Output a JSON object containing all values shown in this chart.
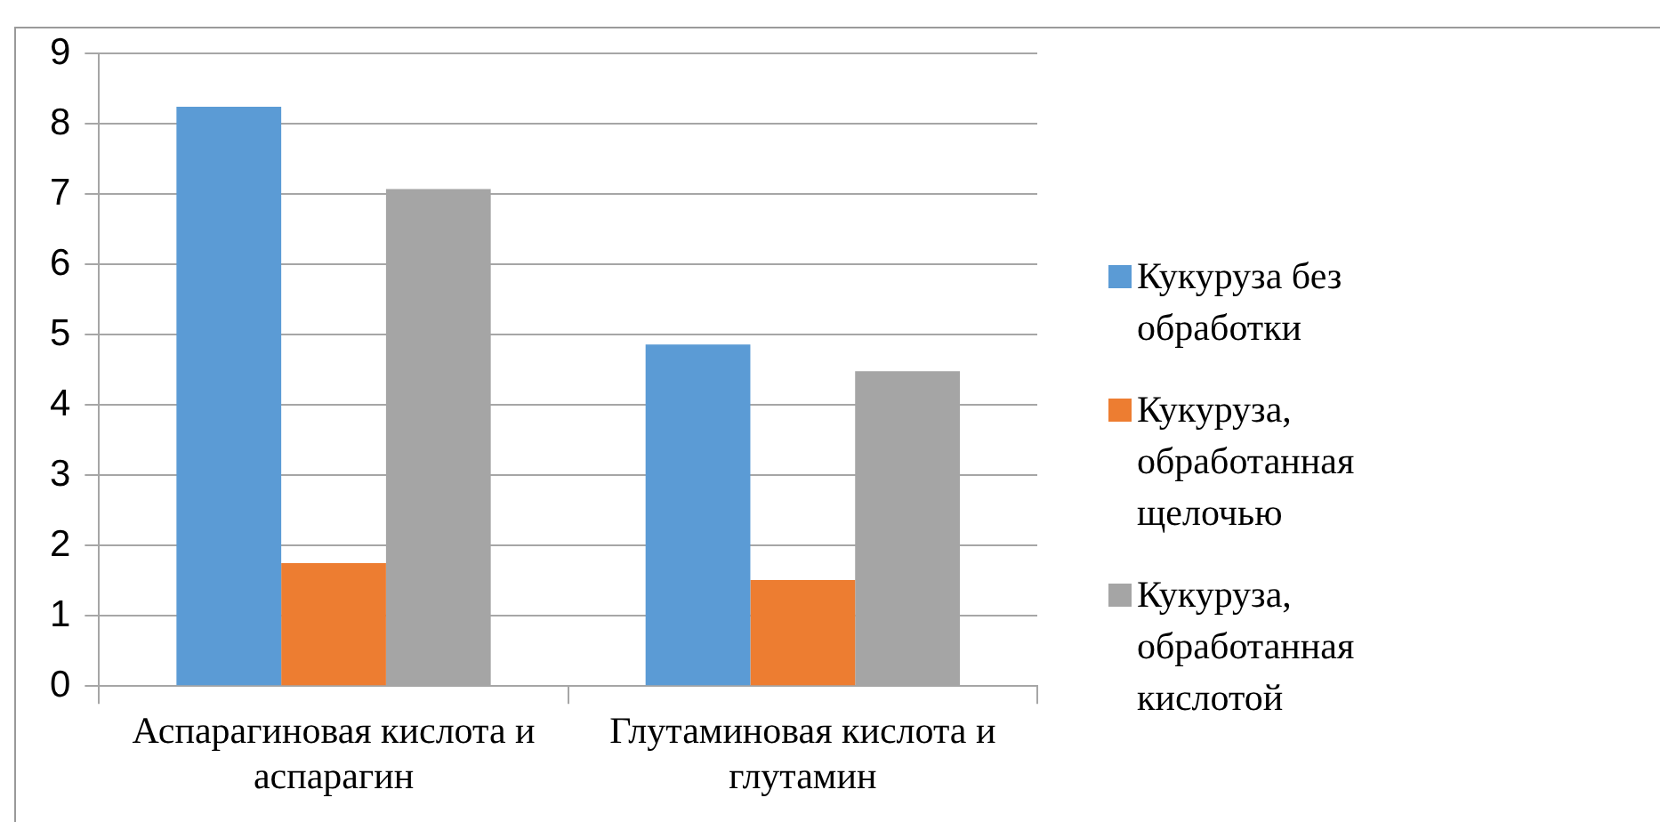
{
  "chart_data": {
    "type": "bar",
    "categories": [
      "Аспарагиновая кислота и аспарагин",
      "Глутаминовая кислота и глутамин"
    ],
    "series": [
      {
        "name": "Кукуруза без обработки",
        "color": "#5b9bd5",
        "values": [
          8.24,
          4.86
        ]
      },
      {
        "name": "Кукуруза, обработанная щелочью",
        "color": "#ed7d31",
        "values": [
          1.75,
          1.51
        ]
      },
      {
        "name": "Кукуруза, обработанная кислотой",
        "color": "#a5a5a5",
        "values": [
          7.07,
          4.48
        ]
      }
    ],
    "ylim": [
      0,
      9
    ],
    "yticks": [
      0,
      1,
      2,
      3,
      4,
      5,
      6,
      7,
      8,
      9
    ],
    "grid": "y",
    "legend": "right"
  }
}
